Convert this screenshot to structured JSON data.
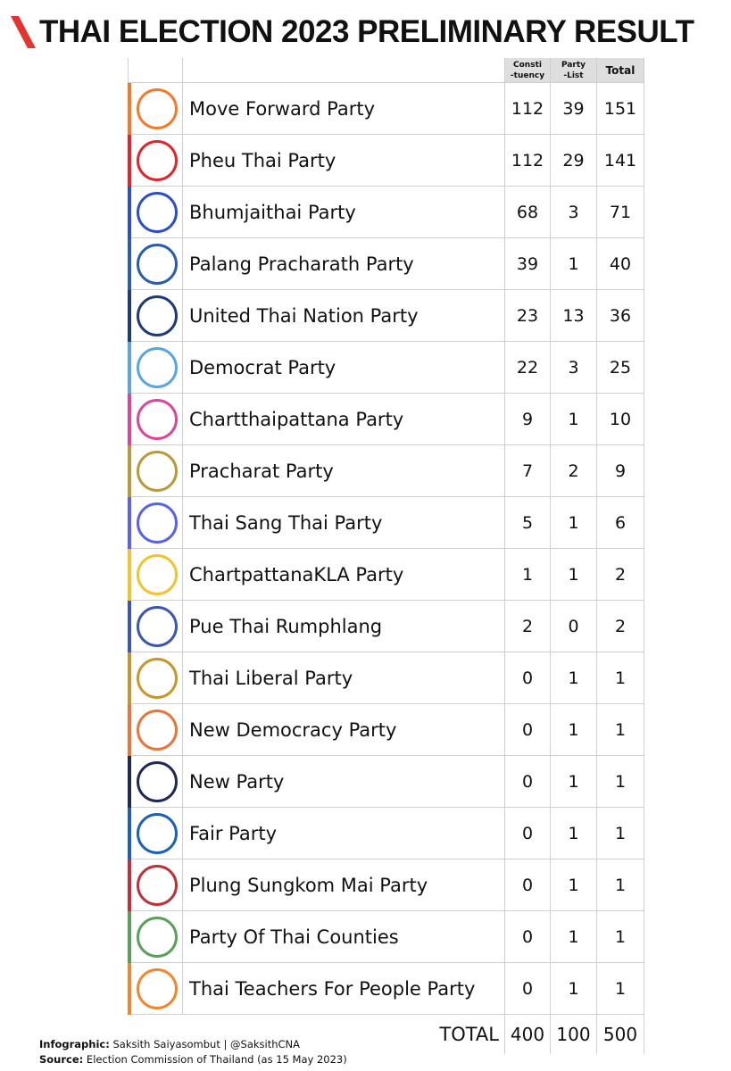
{
  "header": {
    "title": "THAI ELECTION 2023 PRELIMINARY RESULT"
  },
  "table": {
    "columns": [
      "Consti\n-tuency",
      "Party\n-List",
      "Total"
    ],
    "rows": [
      [
        "Move Forward Party",
        112,
        39,
        151
      ],
      [
        "Pheu Thai Party",
        112,
        29,
        141
      ],
      [
        "Bhumjaithai Party",
        68,
        3,
        71
      ],
      [
        "Palang Pracharath Party",
        39,
        1,
        40
      ],
      [
        "United Thai Nation Party",
        23,
        13,
        36
      ],
      [
        "Democrat Party",
        22,
        3,
        25
      ],
      [
        "Chartthaipattana Party",
        9,
        1,
        10
      ],
      [
        "Pracharat Party",
        7,
        2,
        9
      ],
      [
        "Thai Sang Thai Party",
        5,
        1,
        6
      ],
      [
        "ChartpattanaKLA Party",
        1,
        1,
        2
      ],
      [
        "Pue Thai Rumphlang",
        2,
        0,
        2
      ],
      [
        "Thai Liberal Party",
        0,
        1,
        1
      ],
      [
        "New Democracy Party",
        0,
        1,
        1
      ],
      [
        "New Party",
        0,
        1,
        1
      ],
      [
        "Fair Party",
        0,
        1,
        1
      ],
      [
        "Plung Sungkom Mai Party",
        0,
        1,
        1
      ],
      [
        "Party Of Thai Counties",
        0,
        1,
        1
      ],
      [
        "Thai Teachers For People Party",
        0,
        1,
        1
      ]
    ],
    "total": [
      "TOTAL",
      400,
      100,
      500
    ]
  },
  "footer": {
    "credit_label": "Infographic:",
    "credit": "Saksith Saiyasombut | @SaksithCNA",
    "source_label": "Source:",
    "source": "Election Commission of Thailand (as 15 May 2023)"
  }
}
